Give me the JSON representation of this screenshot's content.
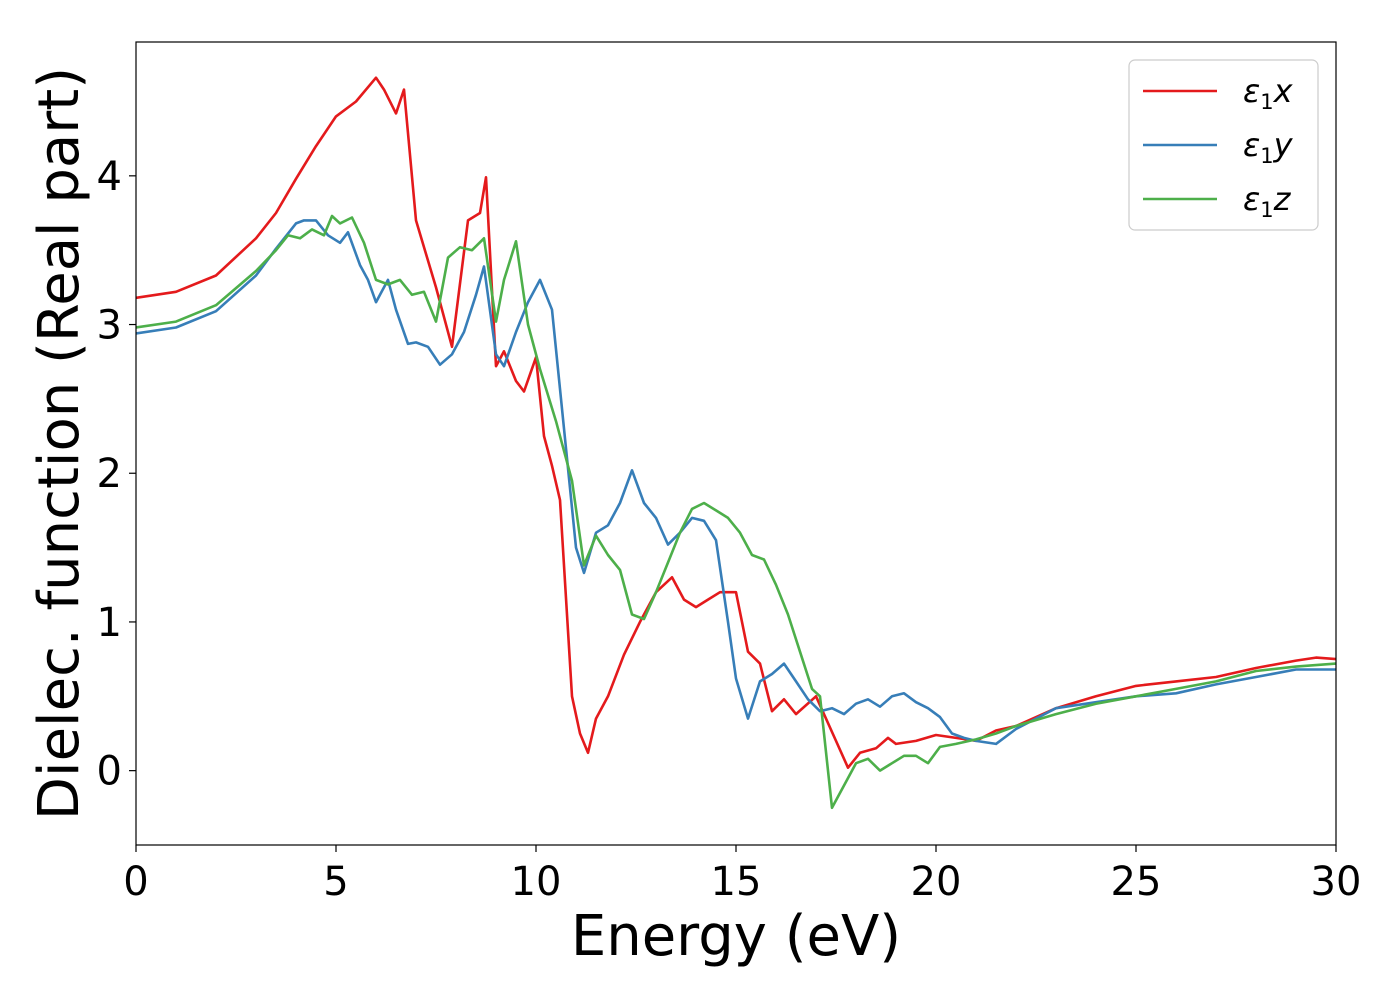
{
  "chart_data": {
    "type": "line",
    "title": "",
    "xlabel": "Energy (eV)",
    "ylabel": "Dielec. function (Real part)",
    "xlim": [
      0,
      30
    ],
    "ylim": [
      -0.5,
      4.9
    ],
    "xticks": [
      0,
      5,
      10,
      15,
      20,
      25,
      30
    ],
    "yticks": [
      0,
      1,
      2,
      3,
      4
    ],
    "grid": false,
    "legend": "top-right",
    "series": [
      {
        "name": "ε1x",
        "legend_main": "ε",
        "legend_sub": "1",
        "legend_suffix": "x",
        "color": "#e41a1c",
        "x": [
          0,
          1,
          2,
          3,
          3.5,
          4,
          4.5,
          5,
          5.5,
          6,
          6.2,
          6.5,
          6.7,
          7,
          7.5,
          7.9,
          8.3,
          8.6,
          8.75,
          9,
          9.2,
          9.5,
          9.7,
          10,
          10.2,
          10.4,
          10.6,
          10.9,
          11.1,
          11.3,
          11.5,
          11.8,
          12.2,
          12.6,
          13,
          13.4,
          13.7,
          14,
          14.3,
          14.6,
          15,
          15.3,
          15.6,
          15.9,
          16.2,
          16.5,
          17,
          17.5,
          17.8,
          18.1,
          18.5,
          18.8,
          19,
          19.5,
          20,
          20.5,
          21,
          21.5,
          22,
          23,
          24,
          25,
          26,
          27,
          28,
          29,
          29.5,
          30
        ],
        "y": [
          3.18,
          3.22,
          3.33,
          3.58,
          3.75,
          3.98,
          4.2,
          4.4,
          4.5,
          4.66,
          4.58,
          4.42,
          4.58,
          3.7,
          3.25,
          2.85,
          3.7,
          3.75,
          3.99,
          2.72,
          2.82,
          2.62,
          2.55,
          2.78,
          2.25,
          2.05,
          1.82,
          0.5,
          0.25,
          0.12,
          0.35,
          0.5,
          0.78,
          1.0,
          1.2,
          1.3,
          1.15,
          1.1,
          1.15,
          1.2,
          1.2,
          0.8,
          0.72,
          0.4,
          0.48,
          0.38,
          0.5,
          0.2,
          0.02,
          0.12,
          0.15,
          0.22,
          0.18,
          0.2,
          0.24,
          0.22,
          0.2,
          0.27,
          0.3,
          0.42,
          0.5,
          0.57,
          0.6,
          0.63,
          0.69,
          0.74,
          0.76,
          0.75
        ]
      },
      {
        "name": "ε1y",
        "legend_main": "ε",
        "legend_sub": "1",
        "legend_suffix": "y",
        "color": "#377eb8",
        "x": [
          0,
          1,
          2,
          3,
          3.5,
          4,
          4.2,
          4.5,
          4.8,
          5.1,
          5.3,
          5.6,
          5.8,
          6.0,
          6.3,
          6.5,
          6.8,
          7.0,
          7.3,
          7.6,
          7.9,
          8.2,
          8.5,
          8.7,
          9.0,
          9.2,
          9.5,
          9.8,
          10.1,
          10.4,
          10.7,
          11.0,
          11.2,
          11.5,
          11.8,
          12.1,
          12.4,
          12.7,
          13.0,
          13.3,
          13.6,
          13.9,
          14.2,
          14.5,
          14.8,
          15.0,
          15.3,
          15.6,
          15.9,
          16.2,
          16.5,
          16.8,
          17.1,
          17.4,
          17.7,
          18.0,
          18.3,
          18.6,
          18.9,
          19.2,
          19.5,
          19.8,
          20.1,
          20.4,
          20.7,
          21.0,
          21.5,
          22,
          23,
          24,
          25,
          26,
          27,
          28,
          29,
          30
        ],
        "y": [
          2.94,
          2.98,
          3.09,
          3.33,
          3.51,
          3.68,
          3.7,
          3.7,
          3.6,
          3.55,
          3.62,
          3.4,
          3.3,
          3.15,
          3.3,
          3.1,
          2.87,
          2.88,
          2.85,
          2.73,
          2.8,
          2.95,
          3.2,
          3.39,
          2.8,
          2.72,
          2.95,
          3.15,
          3.3,
          3.1,
          2.3,
          1.5,
          1.33,
          1.6,
          1.65,
          1.8,
          2.02,
          1.8,
          1.7,
          1.52,
          1.6,
          1.7,
          1.68,
          1.55,
          1.0,
          0.62,
          0.35,
          0.6,
          0.65,
          0.72,
          0.6,
          0.48,
          0.4,
          0.42,
          0.38,
          0.45,
          0.48,
          0.43,
          0.5,
          0.52,
          0.46,
          0.42,
          0.36,
          0.25,
          0.22,
          0.2,
          0.18,
          0.28,
          0.42,
          0.46,
          0.5,
          0.52,
          0.58,
          0.63,
          0.68,
          0.68
        ]
      },
      {
        "name": "ε1z",
        "legend_main": "ε",
        "legend_sub": "1",
        "legend_suffix": "z",
        "color": "#4daf4a",
        "x": [
          0,
          1,
          2,
          3,
          3.5,
          3.8,
          4.1,
          4.4,
          4.7,
          4.9,
          5.1,
          5.4,
          5.7,
          6.0,
          6.3,
          6.6,
          6.9,
          7.2,
          7.5,
          7.8,
          8.1,
          8.4,
          8.7,
          9.0,
          9.2,
          9.5,
          9.8,
          10.1,
          10.5,
          10.9,
          11.2,
          11.5,
          11.8,
          12.1,
          12.4,
          12.7,
          13.0,
          13.3,
          13.6,
          13.9,
          14.2,
          14.5,
          14.8,
          15.1,
          15.4,
          15.7,
          16.0,
          16.3,
          16.6,
          16.9,
          17.1,
          17.4,
          17.7,
          18.0,
          18.3,
          18.6,
          18.9,
          19.2,
          19.5,
          19.8,
          20.1,
          20.5,
          21,
          21.5,
          22,
          23,
          24,
          25,
          26,
          27,
          28,
          29,
          30
        ],
        "y": [
          2.98,
          3.02,
          3.13,
          3.36,
          3.5,
          3.6,
          3.58,
          3.64,
          3.6,
          3.73,
          3.68,
          3.72,
          3.55,
          3.3,
          3.27,
          3.3,
          3.2,
          3.22,
          3.02,
          3.45,
          3.52,
          3.5,
          3.58,
          3.02,
          3.3,
          3.56,
          3.0,
          2.7,
          2.35,
          1.95,
          1.38,
          1.58,
          1.45,
          1.35,
          1.05,
          1.02,
          1.2,
          1.4,
          1.6,
          1.76,
          1.8,
          1.75,
          1.7,
          1.6,
          1.45,
          1.42,
          1.25,
          1.05,
          0.8,
          0.55,
          0.5,
          -0.25,
          -0.1,
          0.05,
          0.08,
          0.0,
          0.05,
          0.1,
          0.1,
          0.05,
          0.16,
          0.18,
          0.21,
          0.25,
          0.3,
          0.38,
          0.45,
          0.5,
          0.55,
          0.6,
          0.67,
          0.7,
          0.72
        ]
      }
    ]
  }
}
